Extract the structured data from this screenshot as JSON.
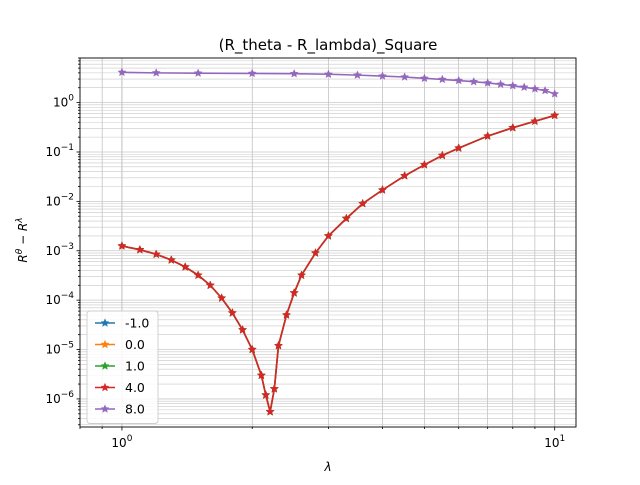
{
  "chart_data": {
    "type": "line",
    "title": "(R_theta - R_lambda)_Square",
    "xlabel": "λ",
    "ylabel": "R^θ − R^λ",
    "xscale": "log",
    "yscale": "log",
    "xlim": [
      0.8,
      11.2
    ],
    "ylim": [
      2.7e-07,
      8.0
    ],
    "x_tick_labels": [
      "10^0",
      "10^1"
    ],
    "y_tick_labels": [
      "10^-6",
      "10^-5",
      "10^-4",
      "10^-3",
      "10^-2",
      "10^-1",
      "10^0"
    ],
    "grid": "both major and minor",
    "legend_position": "lower-left",
    "marker": "star",
    "colors": {
      "-1.0": "#1f77b4",
      "0.0": "#ff7f0e",
      "1.0": "#2ca02c",
      "4.0": "#d62728",
      "8.0": "#9467bd"
    },
    "series": [
      {
        "name": "-1.0",
        "x": [
          1.0,
          1.1,
          1.2,
          1.3,
          1.4,
          1.5,
          1.6,
          1.7,
          1.8,
          1.9,
          2.0,
          2.1,
          2.15,
          2.2,
          2.25,
          2.3,
          2.4,
          2.5,
          2.6,
          2.8,
          3.0,
          3.3,
          3.6,
          4.0,
          4.5,
          5.0,
          5.5,
          6.0,
          7.0,
          8.0,
          9.0,
          10.0
        ],
        "y": [
          0.00125,
          0.00105,
          0.00085,
          0.00065,
          0.00047,
          0.00032,
          0.0002,
          0.00011,
          5.5e-05,
          2.5e-05,
          1e-05,
          3e-06,
          1.2e-06,
          5.5e-07,
          1.6e-06,
          1.2e-05,
          5e-05,
          0.00014,
          0.00032,
          0.0009,
          0.002,
          0.0045,
          0.009,
          0.017,
          0.033,
          0.055,
          0.085,
          0.12,
          0.21,
          0.31,
          0.42,
          0.55
        ]
      },
      {
        "name": "0.0",
        "x": [
          1.0,
          1.1,
          1.2,
          1.3,
          1.4,
          1.5,
          1.6,
          1.7,
          1.8,
          1.9,
          2.0,
          2.1,
          2.15,
          2.2,
          2.25,
          2.3,
          2.4,
          2.5,
          2.6,
          2.8,
          3.0,
          3.3,
          3.6,
          4.0,
          4.5,
          5.0,
          5.5,
          6.0,
          7.0,
          8.0,
          9.0,
          10.0
        ],
        "y": [
          0.00125,
          0.00105,
          0.00085,
          0.00065,
          0.00047,
          0.00032,
          0.0002,
          0.00011,
          5.5e-05,
          2.5e-05,
          1e-05,
          3e-06,
          1.2e-06,
          5.5e-07,
          1.6e-06,
          1.2e-05,
          5e-05,
          0.00014,
          0.00032,
          0.0009,
          0.002,
          0.0045,
          0.009,
          0.017,
          0.033,
          0.055,
          0.085,
          0.12,
          0.21,
          0.31,
          0.42,
          0.55
        ]
      },
      {
        "name": "1.0",
        "x": [
          1.0,
          1.1,
          1.2,
          1.3,
          1.4,
          1.5,
          1.6,
          1.7,
          1.8,
          1.9,
          2.0,
          2.1,
          2.15,
          2.2,
          2.25,
          2.3,
          2.4,
          2.5,
          2.6,
          2.8,
          3.0,
          3.3,
          3.6,
          4.0,
          4.5,
          5.0,
          5.5,
          6.0,
          7.0,
          8.0,
          9.0,
          10.0
        ],
        "y": [
          0.00125,
          0.00105,
          0.00085,
          0.00065,
          0.00047,
          0.00032,
          0.0002,
          0.00011,
          5.5e-05,
          2.5e-05,
          1e-05,
          3e-06,
          1.2e-06,
          5.5e-07,
          1.6e-06,
          1.2e-05,
          5e-05,
          0.00014,
          0.00032,
          0.0009,
          0.002,
          0.0045,
          0.009,
          0.017,
          0.033,
          0.055,
          0.085,
          0.12,
          0.21,
          0.31,
          0.42,
          0.55
        ]
      },
      {
        "name": "4.0",
        "x": [
          1.0,
          1.1,
          1.2,
          1.3,
          1.4,
          1.5,
          1.6,
          1.7,
          1.8,
          1.9,
          2.0,
          2.1,
          2.15,
          2.2,
          2.25,
          2.3,
          2.4,
          2.5,
          2.6,
          2.8,
          3.0,
          3.3,
          3.6,
          4.0,
          4.5,
          5.0,
          5.5,
          6.0,
          7.0,
          8.0,
          9.0,
          10.0
        ],
        "y": [
          0.00125,
          0.00105,
          0.00085,
          0.00065,
          0.00047,
          0.00032,
          0.0002,
          0.00011,
          5.5e-05,
          2.5e-05,
          1e-05,
          3e-06,
          1.2e-06,
          5.5e-07,
          1.6e-06,
          1.2e-05,
          5e-05,
          0.00014,
          0.00032,
          0.0009,
          0.002,
          0.0045,
          0.009,
          0.017,
          0.033,
          0.055,
          0.085,
          0.12,
          0.21,
          0.31,
          0.42,
          0.55
        ]
      },
      {
        "name": "8.0",
        "x": [
          1.0,
          1.2,
          1.5,
          2.0,
          2.5,
          3.0,
          3.5,
          4.0,
          4.5,
          5.0,
          5.5,
          6.0,
          6.5,
          7.0,
          7.5,
          8.0,
          8.5,
          9.0,
          9.5,
          10.0
        ],
        "y": [
          4.1,
          4.0,
          3.95,
          3.9,
          3.85,
          3.75,
          3.6,
          3.45,
          3.3,
          3.1,
          2.95,
          2.8,
          2.65,
          2.5,
          2.35,
          2.2,
          2.05,
          1.9,
          1.75,
          1.5
        ]
      }
    ]
  }
}
